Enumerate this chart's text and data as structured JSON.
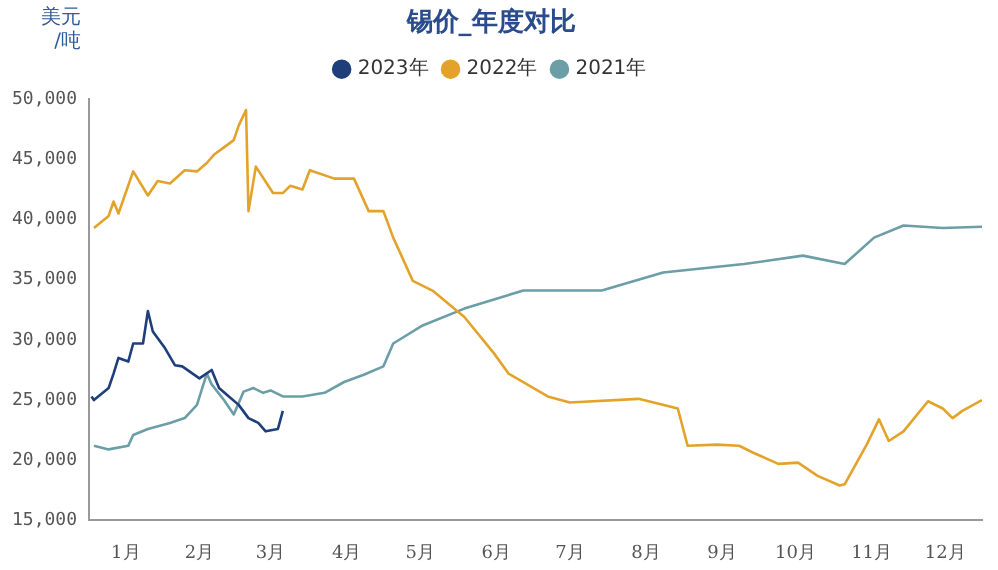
{
  "chart_data": {
    "type": "line",
    "title": "锡价_年度对比",
    "ylabel": "美元/吨",
    "series": [
      {
        "name": "2023年",
        "color": "#1f3f7a",
        "x": [
          "--01-02",
          "--01-03",
          "--01-09",
          "--01-11",
          "--01-13",
          "--01-17",
          "--01-19",
          "--01-23",
          "--01-25",
          "--01-27",
          "--02-01",
          "--02-05",
          "--02-08",
          "--02-15",
          "--02-20",
          "--02-23",
          "--02-27",
          "--03-03",
          "--03-07",
          "--03-11",
          "--03-14",
          "--03-19",
          "--03-21"
        ],
        "values": [
          25300,
          25000,
          26000,
          27200,
          28500,
          28200,
          29700,
          29700,
          32400,
          30700,
          29300,
          27900,
          27800,
          26800,
          27500,
          26000,
          25300,
          24600,
          23500,
          23100,
          22400,
          22600,
          24100
        ]
      },
      {
        "name": "2022年",
        "color": "#e3a32a",
        "x": [
          "--01-03",
          "--01-09",
          "--01-11",
          "--01-13",
          "--01-19",
          "--01-25",
          "--01-29",
          "--02-03",
          "--02-09",
          "--02-14",
          "--02-18",
          "--02-21",
          "--02-25",
          "--03-01",
          "--03-03",
          "--03-06",
          "--03-07",
          "--03-10",
          "--03-17",
          "--03-21",
          "--03-24",
          "--03-29",
          "--04-01",
          "--04-11",
          "--04-19",
          "--04-25",
          "--05-01",
          "--05-05",
          "--05-13",
          "--05-21",
          "--06-03",
          "--06-15",
          "--06-21",
          "--07-07",
          "--07-16",
          "--08-13",
          "--08-29",
          "--09-02",
          "--09-14",
          "--09-23",
          "--09-29",
          "--10-09",
          "--10-17",
          "--10-25",
          "--11-03",
          "--11-05",
          "--11-14",
          "--11-19",
          "--11-23",
          "--11-29",
          "--12-09",
          "--12-15",
          "--12-19",
          "--12-23",
          "--12-31"
        ],
        "values": [
          39300,
          40300,
          41500,
          40500,
          44000,
          42000,
          43200,
          43000,
          44100,
          44000,
          44700,
          45400,
          46000,
          46600,
          47800,
          49100,
          40700,
          44400,
          42200,
          42200,
          42800,
          42500,
          44100,
          43400,
          43400,
          40700,
          40700,
          38500,
          34900,
          34100,
          31900,
          28900,
          27200,
          25300,
          24800,
          25100,
          24300,
          21200,
          21300,
          21200,
          20600,
          19700,
          19800,
          18700,
          17900,
          18000,
          21300,
          23400,
          21600,
          22400,
          24900,
          24300,
          23500,
          24100,
          25000
        ]
      },
      {
        "name": "2021年",
        "color": "#6b9ea6",
        "x": [
          "--01-03",
          "--01-09",
          "--01-17",
          "--01-19",
          "--01-25",
          "--02-03",
          "--02-09",
          "--02-14",
          "--02-18",
          "--02-20",
          "--02-25",
          "--03-01",
          "--03-05",
          "--03-09",
          "--03-13",
          "--03-16",
          "--03-21",
          "--03-29",
          "--04-07",
          "--04-15",
          "--04-23",
          "--05-01",
          "--05-05",
          "--05-17",
          "--06-03",
          "--06-27",
          "--07-29",
          "--08-23",
          "--09-25",
          "--10-19",
          "--11-05",
          "--11-17",
          "--11-29",
          "--12-15",
          "--12-31"
        ],
        "values": [
          21200,
          20900,
          21200,
          22100,
          22600,
          23100,
          23500,
          24600,
          27200,
          26300,
          25000,
          23800,
          25700,
          26000,
          25600,
          25800,
          25300,
          25300,
          25600,
          26500,
          27100,
          27800,
          29700,
          31200,
          32600,
          34100,
          34100,
          35600,
          36300,
          37000,
          36300,
          38500,
          39500,
          39300,
          39400
        ]
      }
    ],
    "xlim": [
      "--01-01",
      "--12-31"
    ],
    "xticks": [
      {
        "value": "--01-16",
        "label": "1月"
      },
      {
        "value": "--02-15",
        "label": "2月"
      },
      {
        "value": "--03-16",
        "label": "3月"
      },
      {
        "value": "--04-16",
        "label": "4月"
      },
      {
        "value": "--05-16",
        "label": "5月"
      },
      {
        "value": "--06-16",
        "label": "6月"
      },
      {
        "value": "--07-16",
        "label": "7月"
      },
      {
        "value": "--08-16",
        "label": "8月"
      },
      {
        "value": "--09-16",
        "label": "9月"
      },
      {
        "value": "--10-16",
        "label": "10月"
      },
      {
        "value": "--11-16",
        "label": "11月"
      },
      {
        "value": "--12-16",
        "label": "12月"
      }
    ],
    "ylim": [
      15000,
      50000
    ],
    "yticks": [
      {
        "value": 15000,
        "label": "15,000"
      },
      {
        "value": 20000,
        "label": "20,000"
      },
      {
        "value": 25000,
        "label": "25,000"
      },
      {
        "value": 30000,
        "label": "30,000"
      },
      {
        "value": 35000,
        "label": "35,000"
      },
      {
        "value": 40000,
        "label": "40,000"
      },
      {
        "value": 45000,
        "label": "45,000"
      },
      {
        "value": 50000,
        "label": "50,000"
      }
    ],
    "grid": false,
    "legend": "top",
    "marker": "none",
    "line_style": "solid"
  }
}
